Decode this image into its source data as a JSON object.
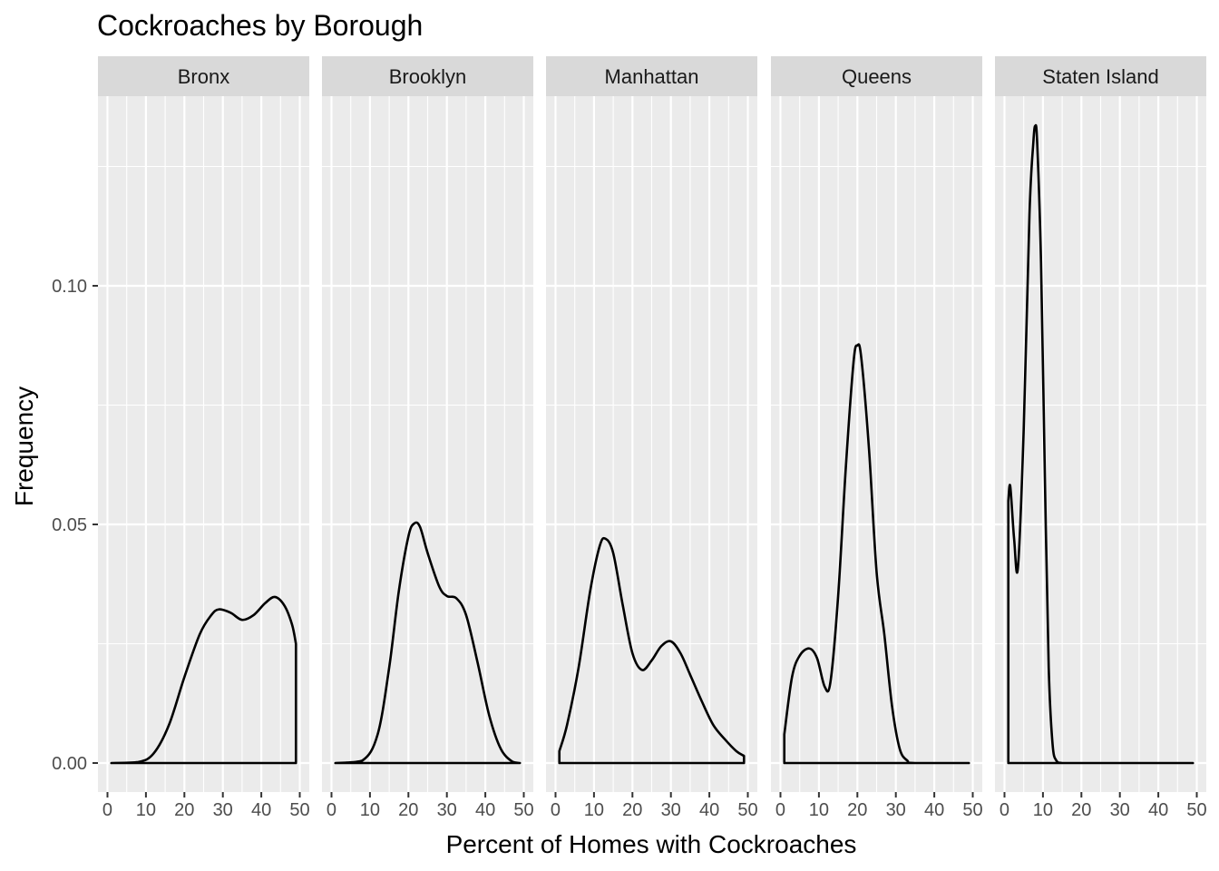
{
  "chart_data": {
    "type": "density",
    "title": "Cockroaches by Borough",
    "xlabel": "Percent of Homes with Cockroaches",
    "ylabel": "Frequency",
    "xlim": [
      0,
      50
    ],
    "ylim": [
      0,
      0.13
    ],
    "x_ticks": [
      0,
      10,
      20,
      30,
      40,
      50
    ],
    "x_tick_labels": [
      "0",
      "10",
      "20",
      "30",
      "40",
      "50"
    ],
    "y_ticks": [
      0.0,
      0.05,
      0.1
    ],
    "y_tick_labels": [
      "0.00",
      "0.05",
      "0.10"
    ],
    "facets": [
      {
        "name": "Bronx",
        "x": [
          1.0,
          8.0,
          12.0,
          16.0,
          20.0,
          24.0,
          27.0,
          29.0,
          32.0,
          35.0,
          38.0,
          41.0,
          43.5,
          46.0,
          48.0,
          49.0,
          49.0
        ],
        "values": [
          0.0,
          0.0002,
          0.002,
          0.008,
          0.018,
          0.027,
          0.031,
          0.0322,
          0.0315,
          0.03,
          0.031,
          0.0335,
          0.0348,
          0.033,
          0.029,
          0.025,
          0.0
        ]
      },
      {
        "name": "Brooklyn",
        "x": [
          1.0,
          8.0,
          12.0,
          15.0,
          17.5,
          20.0,
          21.5,
          23.0,
          25.0,
          28.0,
          30.0,
          32.5,
          35.0,
          38.0,
          41.0,
          44.0,
          47.0,
          49.0
        ],
        "values": [
          0.0,
          0.0005,
          0.006,
          0.02,
          0.036,
          0.0475,
          0.0502,
          0.0495,
          0.044,
          0.037,
          0.035,
          0.0345,
          0.031,
          0.021,
          0.01,
          0.003,
          0.0003,
          0.0
        ]
      },
      {
        "name": "Manhattan",
        "x": [
          1.0,
          1.0,
          3.0,
          6.0,
          9.0,
          11.5,
          13.0,
          15.0,
          17.5,
          20.0,
          22.5,
          25.0,
          27.5,
          30.0,
          32.5,
          35.0,
          38.0,
          41.0,
          44.0,
          47.0,
          49.0,
          49.0
        ],
        "values": [
          0.0,
          0.0025,
          0.008,
          0.02,
          0.036,
          0.0455,
          0.047,
          0.044,
          0.033,
          0.023,
          0.0195,
          0.0215,
          0.0245,
          0.0255,
          0.023,
          0.0185,
          0.013,
          0.008,
          0.005,
          0.0025,
          0.0015,
          0.0
        ]
      },
      {
        "name": "Queens",
        "x": [
          1.0,
          1.0,
          3.0,
          5.0,
          7.5,
          9.5,
          11.5,
          13.0,
          15.0,
          17.0,
          19.0,
          20.0,
          21.0,
          23.0,
          25.0,
          27.0,
          29.0,
          31.0,
          33.0,
          35.0,
          49.0
        ],
        "values": [
          0.0,
          0.006,
          0.018,
          0.0225,
          0.024,
          0.022,
          0.016,
          0.017,
          0.035,
          0.062,
          0.084,
          0.0875,
          0.085,
          0.066,
          0.04,
          0.027,
          0.012,
          0.003,
          0.0005,
          0.0,
          0.0
        ]
      },
      {
        "name": "Staten Island",
        "x": [
          1.0,
          1.0,
          1.5,
          2.5,
          3.5,
          5.0,
          6.5,
          7.5,
          8.0,
          8.5,
          9.5,
          10.5,
          11.5,
          12.5,
          13.5,
          15.0,
          20.0,
          49.0
        ],
        "values": [
          0.0,
          0.055,
          0.058,
          0.047,
          0.041,
          0.07,
          0.115,
          0.13,
          0.1335,
          0.13,
          0.105,
          0.06,
          0.02,
          0.004,
          0.0005,
          0.0,
          0.0,
          0.0
        ]
      }
    ]
  }
}
